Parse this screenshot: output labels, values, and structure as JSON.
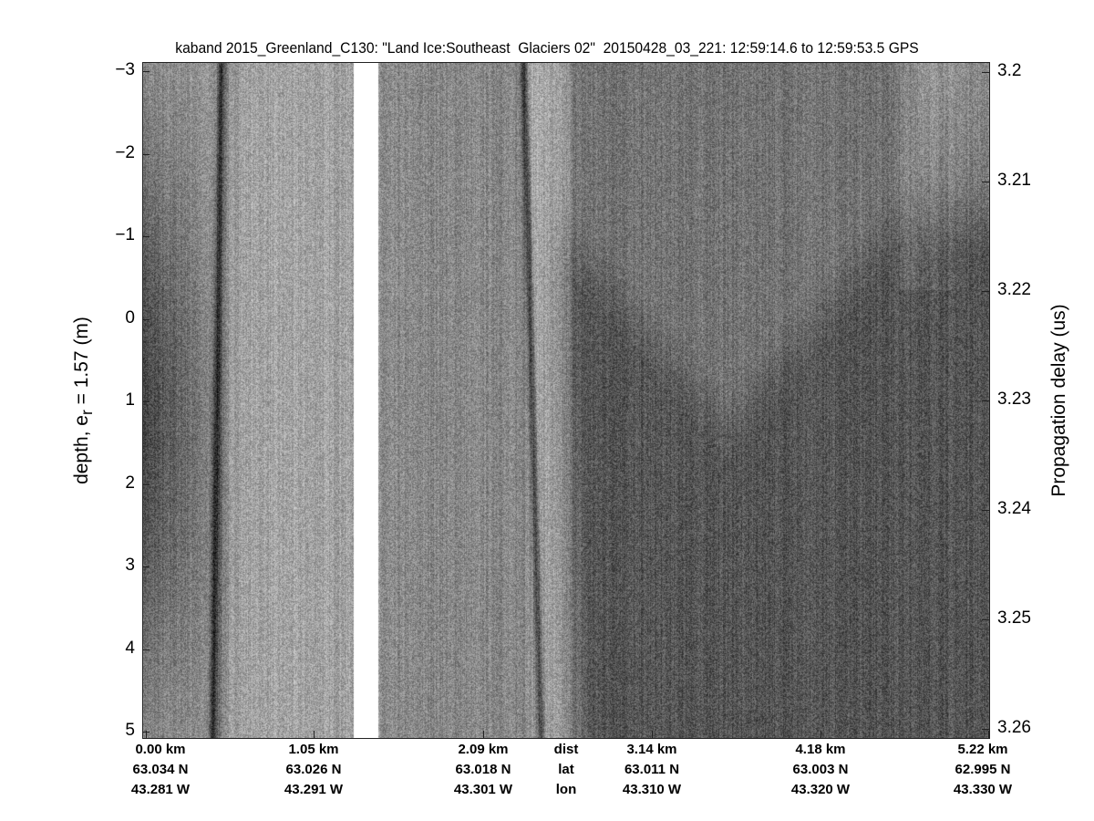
{
  "chart_data": {
    "type": "heatmap",
    "title": "kaband 2015_Greenland_C130: \"Land Ice:Southeast  Glaciers 02\"  20150428_03_221: 12:59:14.6 to 12:59:53.5 GPS",
    "ylabel_prefix": "depth, e",
    "ylabel_sub": "r",
    "ylabel_suffix": " = 1.57 (m)",
    "y2label": "Propagation delay (us)",
    "ylim": [
      -3,
      5
    ],
    "y_ticks": [
      "−3",
      "−2",
      "−1",
      "0",
      "1",
      "2",
      "3",
      "4",
      "5"
    ],
    "y2lim": [
      3.2,
      3.26
    ],
    "y2_ticks": [
      "3.2",
      "3.21",
      "3.22",
      "3.23",
      "3.24",
      "3.25",
      "3.26"
    ],
    "x_rows": {
      "dist": [
        "0.00 km",
        "1.05 km",
        "2.09 km",
        "3.14 km",
        "4.18 km",
        "5.22 km"
      ],
      "lat": [
        "63.034 N",
        "63.026 N",
        "63.018 N",
        "63.011 N",
        "63.003 N",
        "62.995 N"
      ],
      "lon": [
        "43.281 W",
        "43.291 W",
        "43.301 W",
        "43.310 W",
        "43.320 W",
        "43.330 W"
      ]
    },
    "row_labels": [
      "dist",
      "lat",
      "lon"
    ],
    "colormap": "gray",
    "data_gap_km": [
      1.3,
      1.45
    ]
  }
}
